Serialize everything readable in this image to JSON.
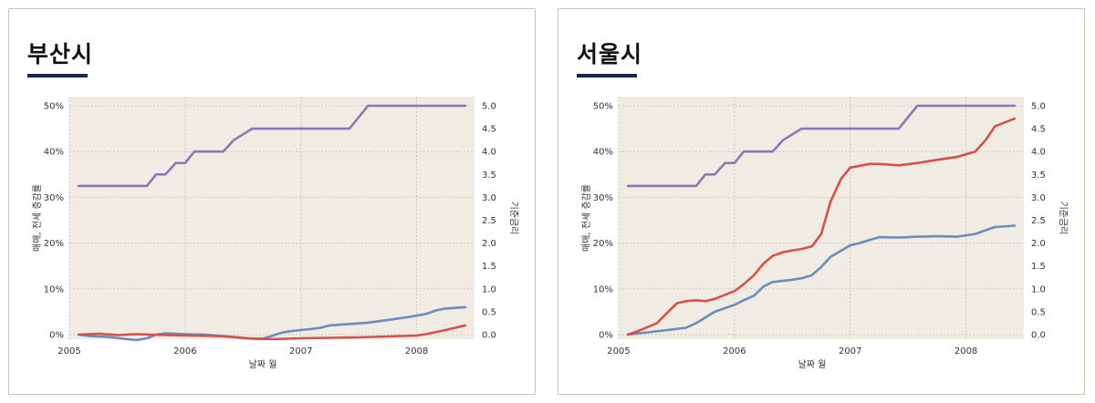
{
  "colors": {
    "plot_bg": "#f0ece3",
    "grid": "#cfcabd",
    "title_underline": "#14284e"
  },
  "chart_data": [
    {
      "type": "line",
      "title": "부산시",
      "xlabel": "날짜 월",
      "ylabel": "매매, 전세 증감률",
      "y2label": "기준금리",
      "xlim": [
        2005,
        2008.5
      ],
      "ylim": [
        -1,
        52
      ],
      "y2lim": [
        -0.1,
        5.2
      ],
      "x_ticks": [
        2005,
        2006,
        2007,
        2008
      ],
      "x_tick_labels": [
        "2005",
        "2006",
        "2007",
        "2008"
      ],
      "y_ticks": [
        0,
        10,
        20,
        30,
        40,
        50
      ],
      "y_tick_labels": [
        "0%",
        "10%",
        "20%",
        "30%",
        "40%",
        "50%"
      ],
      "y2_ticks": [
        0,
        0.5,
        1,
        1.5,
        2,
        2.5,
        3,
        3.5,
        4,
        4.5,
        5
      ],
      "y2_tick_labels": [
        "0.0",
        "0.5",
        "1.0",
        "1.5",
        "2.0",
        "2.5",
        "3.0",
        "3.5",
        "4.0",
        "4.5",
        "5.0"
      ],
      "grid": true,
      "series": [
        {
          "axis": "y2",
          "color": "#8d77b6",
          "x": [
            2005.08,
            2005.67,
            2005.75,
            2005.83,
            2005.92,
            2006.0,
            2006.08,
            2006.33,
            2006.42,
            2006.58,
            2007.42,
            2007.58,
            2008.42
          ],
          "values": [
            3.25,
            3.25,
            3.5,
            3.5,
            3.75,
            3.75,
            4.0,
            4.0,
            4.25,
            4.5,
            4.5,
            5.0,
            5.0
          ]
        },
        {
          "axis": "y1",
          "color": "#6b8cbd",
          "x": [
            2005.08,
            2005.17,
            2005.33,
            2005.5,
            2005.58,
            2005.67,
            2005.75,
            2005.83,
            2005.92,
            2006.0,
            2006.17,
            2006.33,
            2006.5,
            2006.67,
            2006.75,
            2006.83,
            2006.92,
            2007.0,
            2007.08,
            2007.17,
            2007.25,
            2007.42,
            2007.58,
            2007.75,
            2007.92,
            2008.08,
            2008.17,
            2008.25,
            2008.42
          ],
          "values": [
            0.0,
            -0.3,
            -0.5,
            -1.0,
            -1.2,
            -0.8,
            0.0,
            0.3,
            0.2,
            0.1,
            0.0,
            -0.3,
            -0.8,
            -0.9,
            -0.3,
            0.4,
            0.8,
            1.0,
            1.2,
            1.5,
            2.0,
            2.3,
            2.6,
            3.2,
            3.8,
            4.5,
            5.3,
            5.7,
            6.0
          ]
        },
        {
          "axis": "y1",
          "color": "#d5514a",
          "x": [
            2005.08,
            2005.25,
            2005.42,
            2005.58,
            2005.83,
            2006.0,
            2006.25,
            2006.42,
            2006.58,
            2006.75,
            2007.0,
            2007.25,
            2007.5,
            2007.75,
            2008.0,
            2008.08,
            2008.25,
            2008.42
          ],
          "values": [
            0.0,
            0.2,
            -0.1,
            0.1,
            -0.1,
            -0.2,
            -0.3,
            -0.5,
            -0.9,
            -1.0,
            -0.8,
            -0.7,
            -0.6,
            -0.4,
            -0.2,
            0.1,
            1.0,
            2.0
          ]
        }
      ]
    },
    {
      "type": "line",
      "title": "서울시",
      "xlabel": "날짜 월",
      "ylabel": "매매, 전세 증감률",
      "y2label": "기준금리",
      "xlim": [
        2005,
        2008.5
      ],
      "ylim": [
        -1,
        52
      ],
      "y2lim": [
        -0.1,
        5.2
      ],
      "x_ticks": [
        2005,
        2006,
        2007,
        2008
      ],
      "x_tick_labels": [
        "2005",
        "2006",
        "2007",
        "2008"
      ],
      "y_ticks": [
        0,
        10,
        20,
        30,
        40,
        50
      ],
      "y_tick_labels": [
        "0%",
        "10%",
        "20%",
        "30%",
        "40%",
        "50%"
      ],
      "y2_ticks": [
        0,
        0.5,
        1,
        1.5,
        2,
        2.5,
        3,
        3.5,
        4,
        4.5,
        5
      ],
      "y2_tick_labels": [
        "0.0",
        "0.5",
        "1.0",
        "1.5",
        "2.0",
        "2.5",
        "3.0",
        "3.5",
        "4.0",
        "4.5",
        "5.0"
      ],
      "grid": true,
      "series": [
        {
          "axis": "y2",
          "color": "#8d77b6",
          "x": [
            2005.08,
            2005.67,
            2005.75,
            2005.83,
            2005.92,
            2006.0,
            2006.08,
            2006.33,
            2006.42,
            2006.58,
            2007.42,
            2007.58,
            2008.42
          ],
          "values": [
            3.25,
            3.25,
            3.5,
            3.5,
            3.75,
            3.75,
            4.0,
            4.0,
            4.25,
            4.5,
            4.5,
            5.0,
            5.0
          ]
        },
        {
          "axis": "y1",
          "color": "#6b8cbd",
          "x": [
            2005.08,
            2005.25,
            2005.42,
            2005.58,
            2005.67,
            2005.83,
            2005.92,
            2006.0,
            2006.08,
            2006.17,
            2006.25,
            2006.33,
            2006.5,
            2006.58,
            2006.67,
            2006.75,
            2006.83,
            2007.0,
            2007.08,
            2007.17,
            2007.25,
            2007.42,
            2007.58,
            2007.75,
            2007.92,
            2008.08,
            2008.25,
            2008.42
          ],
          "values": [
            0.0,
            0.5,
            1.0,
            1.5,
            2.5,
            5.0,
            5.8,
            6.5,
            7.5,
            8.5,
            10.5,
            11.5,
            12.0,
            12.3,
            13.0,
            14.8,
            17.0,
            19.5,
            20.0,
            20.7,
            21.3,
            21.2,
            21.4,
            21.5,
            21.4,
            22.0,
            23.5,
            23.8
          ]
        },
        {
          "axis": "y1",
          "color": "#d5514a",
          "x": [
            2005.08,
            2005.17,
            2005.33,
            2005.42,
            2005.5,
            2005.58,
            2005.67,
            2005.75,
            2005.83,
            2006.0,
            2006.08,
            2006.17,
            2006.25,
            2006.33,
            2006.42,
            2006.5,
            2006.58,
            2006.67,
            2006.75,
            2006.83,
            2006.92,
            2007.0,
            2007.17,
            2007.25,
            2007.42,
            2007.58,
            2007.75,
            2007.92,
            2008.08,
            2008.17,
            2008.25,
            2008.42
          ],
          "values": [
            0.0,
            0.8,
            2.5,
            4.8,
            6.8,
            7.3,
            7.5,
            7.3,
            7.8,
            9.5,
            11.0,
            13.0,
            15.5,
            17.2,
            18.0,
            18.4,
            18.7,
            19.3,
            22.0,
            29.0,
            34.0,
            36.5,
            37.3,
            37.3,
            37.0,
            37.5,
            38.2,
            38.8,
            40.0,
            42.5,
            45.5,
            47.2
          ]
        }
      ]
    }
  ]
}
